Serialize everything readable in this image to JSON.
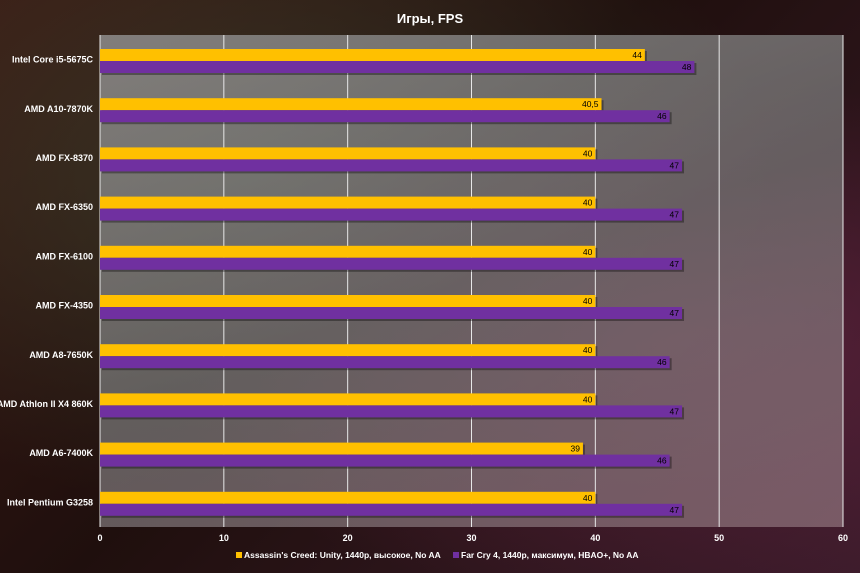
{
  "chart_data": {
    "type": "bar",
    "orientation": "horizontal",
    "title": "Игры, FPS",
    "categories": [
      "Intel Core i5-5675C",
      "AMD A10-7870K",
      "AMD FX-8370",
      "AMD FX-6350",
      "AMD FX-6100",
      "AMD FX-4350",
      "AMD A8-7650K",
      "AMD Athlon II X4 860K",
      "AMD A6-7400K",
      "Intel Pentium G3258"
    ],
    "series": [
      {
        "name": "Assassin's Creed: Unity, 1440p, высокое, No AA",
        "color": "#FFC000",
        "values": [
          44,
          40.5,
          40,
          40,
          40,
          40,
          40,
          40,
          39,
          40
        ],
        "labels": [
          "44",
          "40,5",
          "40",
          "40",
          "40",
          "40",
          "40",
          "40",
          "39",
          "40"
        ]
      },
      {
        "name": "Far Cry 4, 1440p, максимум, HBAO+,  No AA",
        "color": "#7030A0",
        "values": [
          48,
          46,
          47,
          47,
          47,
          47,
          46,
          47,
          46,
          47
        ],
        "labels": [
          "48",
          "46",
          "47",
          "47",
          "47",
          "47",
          "46",
          "47",
          "46",
          "47"
        ]
      }
    ],
    "xlim": [
      0,
      60
    ],
    "xticks": [
      0,
      10,
      20,
      30,
      40,
      50,
      60
    ],
    "grid": true,
    "legend_position": "bottom"
  }
}
